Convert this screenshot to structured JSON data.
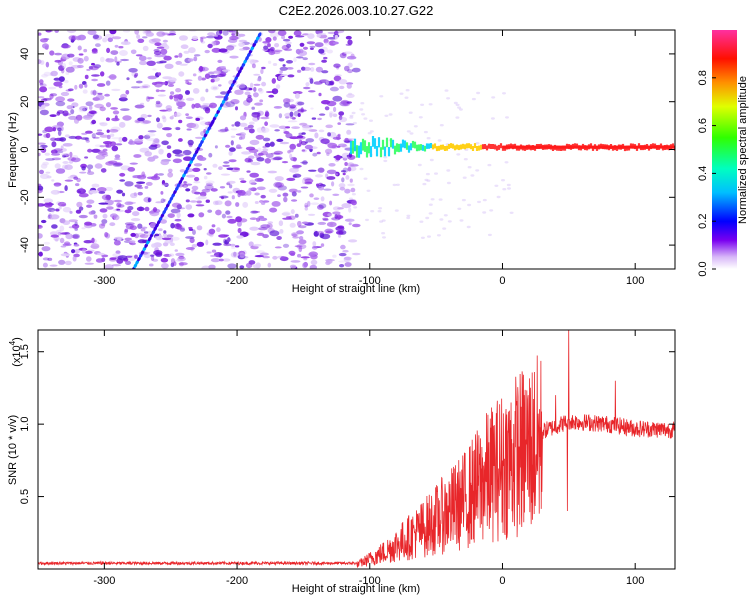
{
  "title": "C2E2.2026.003.10.27.G22",
  "colors": {
    "spectrogram_low": "#8a2be2",
    "signal_line": "#e8262a",
    "axis": "#000000"
  },
  "chart_data": [
    {
      "type": "heatmap",
      "name": "spectrogram",
      "xlabel": "Height of straight line (km)",
      "ylabel": "Frequency (Hz)",
      "xlim": [
        -350,
        130
      ],
      "ylim": [
        -50,
        50
      ],
      "xticks": [
        -300,
        -200,
        -100,
        0,
        100
      ],
      "xtick_labels": [
        "-300",
        "-200",
        "-100",
        "0",
        "100"
      ],
      "yticks": [
        -40,
        -20,
        0,
        20,
        40
      ],
      "ytick_labels": [
        "-40",
        "-20",
        "0",
        "20",
        "40"
      ],
      "noise_region_x": [
        -350,
        -110
      ],
      "diagonal_track": {
        "x_start": -278,
        "y_start": -50,
        "x_end": -183,
        "y_end": 48
      },
      "signal_band": {
        "x_start": -115,
        "x_end": 130,
        "freq": 1
      },
      "colorbar": {
        "label": "Normalized spectral amplitude",
        "range": [
          0,
          1
        ],
        "ticks": [
          0.0,
          0.2,
          0.4,
          0.6,
          0.8
        ],
        "tick_labels": [
          "0.0",
          "0.2",
          "0.4",
          "0.6",
          "0.8"
        ]
      }
    },
    {
      "type": "line",
      "name": "snr",
      "xlabel": "Height of straight line (km)",
      "ylabel": "SNR (10 * v/v)",
      "multiplier_label": "(x10",
      "multiplier_exp": "4",
      "multiplier_close": ")",
      "xlim": [
        -350,
        130
      ],
      "ylim": [
        0,
        1.65
      ],
      "xticks": [
        -300,
        -200,
        -100,
        0,
        100
      ],
      "xtick_labels": [
        "-300",
        "-200",
        "-100",
        "0",
        "100"
      ],
      "yticks": [
        0.5,
        1.0,
        1.5
      ],
      "ytick_labels": [
        "0.5",
        "1.0",
        "1.5"
      ],
      "envelope": [
        {
          "x": -350,
          "y": 0.03
        },
        {
          "x": -110,
          "y": 0.03
        },
        {
          "x": -90,
          "y": 0.12
        },
        {
          "x": -60,
          "y": 0.3
        },
        {
          "x": -30,
          "y": 0.5
        },
        {
          "x": -10,
          "y": 0.7
        },
        {
          "x": 10,
          "y": 0.85
        },
        {
          "x": 30,
          "y": 0.95
        },
        {
          "x": 50,
          "y": 1.02
        },
        {
          "x": 80,
          "y": 1.0
        },
        {
          "x": 100,
          "y": 0.97
        },
        {
          "x": 130,
          "y": 0.96
        }
      ],
      "spikes": [
        {
          "x": 50,
          "y": 1.65
        },
        {
          "x": 49,
          "y": 0.4
        },
        {
          "x": 85,
          "y": 1.3
        },
        {
          "x": 14,
          "y": 1.12
        },
        {
          "x": 40,
          "y": 1.2
        }
      ]
    }
  ]
}
